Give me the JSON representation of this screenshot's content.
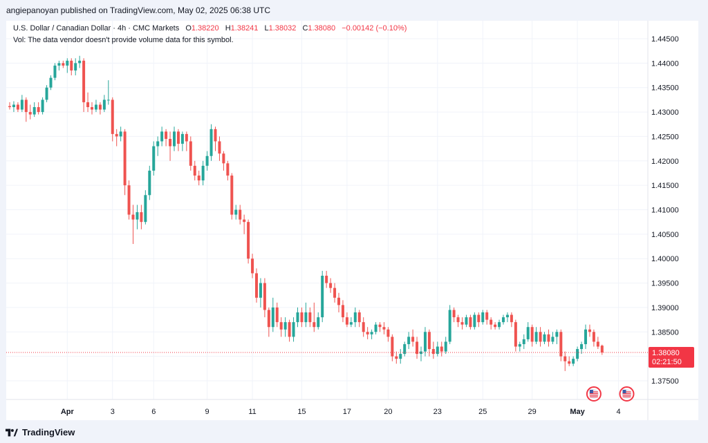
{
  "header": {
    "published": "angiepanoyan published on TradingView.com, May 02, 2025 06:38 UTC"
  },
  "legend": {
    "symbol": "U.S. Dollar / Canadian Dollar · 4h · CMC Markets",
    "o_label": "O",
    "o_value": "1.38220",
    "h_label": "H",
    "h_value": "1.38241",
    "l_label": "L",
    "l_value": "1.38032",
    "c_label": "C",
    "c_value": "1.38080",
    "change": "−0.00142 (−0.10%)",
    "vol_note": "Vol: The data vendor doesn't provide volume data for this symbol."
  },
  "price_label": {
    "price": "1.38080",
    "countdown": "02:21:50"
  },
  "footer": {
    "brand": "TradingView"
  },
  "colors": {
    "up": "#26a69a",
    "down": "#ef5350",
    "grid": "#f0f3fa",
    "text": "#131722",
    "badge": "#f23645"
  },
  "chart_data": {
    "type": "candlestick",
    "symbol": "USDCAD",
    "interval": "4h",
    "ylim": [
      1.3725,
      1.4475
    ],
    "yticks": [
      "1.44500",
      "1.44000",
      "1.43500",
      "1.43000",
      "1.42500",
      "1.42000",
      "1.41500",
      "1.41000",
      "1.40500",
      "1.40000",
      "1.39500",
      "1.39000",
      "1.38500",
      "1.38000",
      "1.37500"
    ],
    "xticks": [
      {
        "label": "Apr",
        "i": 14
      },
      {
        "label": "3",
        "i": 25
      },
      {
        "label": "6",
        "i": 35
      },
      {
        "label": "9",
        "i": 48
      },
      {
        "label": "11",
        "i": 59
      },
      {
        "label": "15",
        "i": 71
      },
      {
        "label": "17",
        "i": 82
      },
      {
        "label": "20",
        "i": 92
      },
      {
        "label": "23",
        "i": 104
      },
      {
        "label": "25",
        "i": 115
      },
      {
        "label": "29",
        "i": 127
      },
      {
        "label": "May",
        "i": 138
      },
      {
        "label": "4",
        "i": 148
      }
    ],
    "grid": true,
    "last_price": 1.3808,
    "event_icons": [
      {
        "i": 142
      },
      {
        "i": 150
      }
    ],
    "candles": [
      [
        1.4312,
        1.432,
        1.4305,
        1.431
      ],
      [
        1.431,
        1.4322,
        1.43,
        1.4315
      ],
      [
        1.4315,
        1.432,
        1.43,
        1.4305
      ],
      [
        1.4305,
        1.4335,
        1.43,
        1.4325
      ],
      [
        1.4325,
        1.433,
        1.428,
        1.43
      ],
      [
        1.43,
        1.4315,
        1.4285,
        1.4295
      ],
      [
        1.4295,
        1.432,
        1.429,
        1.431
      ],
      [
        1.431,
        1.432,
        1.4295,
        1.43
      ],
      [
        1.43,
        1.433,
        1.4295,
        1.4325
      ],
      [
        1.4325,
        1.4355,
        1.432,
        1.435
      ],
      [
        1.435,
        1.4375,
        1.4345,
        1.437
      ],
      [
        1.437,
        1.44,
        1.4365,
        1.4395
      ],
      [
        1.4395,
        1.4405,
        1.4385,
        1.44
      ],
      [
        1.44,
        1.4405,
        1.439,
        1.4395
      ],
      [
        1.4395,
        1.441,
        1.438,
        1.4405
      ],
      [
        1.4405,
        1.441,
        1.4375,
        1.4385
      ],
      [
        1.4385,
        1.441,
        1.4375,
        1.44
      ],
      [
        1.44,
        1.4415,
        1.439,
        1.4405
      ],
      [
        1.4405,
        1.441,
        1.43,
        1.432
      ],
      [
        1.432,
        1.434,
        1.43,
        1.431
      ],
      [
        1.431,
        1.432,
        1.4295,
        1.4305
      ],
      [
        1.4305,
        1.4325,
        1.43,
        1.4315
      ],
      [
        1.4315,
        1.432,
        1.4295,
        1.4305
      ],
      [
        1.4305,
        1.4335,
        1.43,
        1.4325
      ],
      [
        1.4325,
        1.4365,
        1.4315,
        1.4325
      ],
      [
        1.4325,
        1.433,
        1.424,
        1.4255
      ],
      [
        1.4255,
        1.4265,
        1.423,
        1.425
      ],
      [
        1.425,
        1.427,
        1.424,
        1.426
      ],
      [
        1.426,
        1.4265,
        1.413,
        1.415
      ],
      [
        1.415,
        1.416,
        1.408,
        1.409
      ],
      [
        1.409,
        1.411,
        1.403,
        1.408
      ],
      [
        1.408,
        1.411,
        1.406,
        1.4095
      ],
      [
        1.4095,
        1.411,
        1.406,
        1.4075
      ],
      [
        1.4075,
        1.414,
        1.407,
        1.413
      ],
      [
        1.413,
        1.419,
        1.412,
        1.418
      ],
      [
        1.418,
        1.424,
        1.417,
        1.423
      ],
      [
        1.423,
        1.425,
        1.421,
        1.424
      ],
      [
        1.424,
        1.427,
        1.423,
        1.426
      ],
      [
        1.426,
        1.4265,
        1.423,
        1.4245
      ],
      [
        1.4245,
        1.426,
        1.42,
        1.423
      ],
      [
        1.423,
        1.427,
        1.422,
        1.426
      ],
      [
        1.426,
        1.4265,
        1.422,
        1.4235
      ],
      [
        1.4235,
        1.426,
        1.422,
        1.4255
      ],
      [
        1.4255,
        1.426,
        1.422,
        1.424
      ],
      [
        1.424,
        1.425,
        1.418,
        1.419
      ],
      [
        1.419,
        1.42,
        1.416,
        1.417
      ],
      [
        1.417,
        1.418,
        1.415,
        1.416
      ],
      [
        1.416,
        1.42,
        1.415,
        1.419
      ],
      [
        1.419,
        1.422,
        1.418,
        1.421
      ],
      [
        1.421,
        1.4275,
        1.42,
        1.4265
      ],
      [
        1.4265,
        1.427,
        1.422,
        1.424
      ],
      [
        1.424,
        1.425,
        1.42,
        1.4215
      ],
      [
        1.4215,
        1.422,
        1.418,
        1.4195
      ],
      [
        1.4195,
        1.42,
        1.416,
        1.417
      ],
      [
        1.417,
        1.4175,
        1.408,
        1.409
      ],
      [
        1.409,
        1.411,
        1.408,
        1.41
      ],
      [
        1.41,
        1.411,
        1.407,
        1.408
      ],
      [
        1.408,
        1.409,
        1.405,
        1.4075
      ],
      [
        1.4075,
        1.408,
        1.399,
        1.4
      ],
      [
        1.4,
        1.401,
        1.396,
        1.397
      ],
      [
        1.397,
        1.398,
        1.391,
        1.392
      ],
      [
        1.392,
        1.396,
        1.39,
        1.395
      ],
      [
        1.395,
        1.396,
        1.388,
        1.3895
      ],
      [
        1.3895,
        1.39,
        1.384,
        1.386
      ],
      [
        1.386,
        1.392,
        1.385,
        1.39
      ],
      [
        1.39,
        1.391,
        1.386,
        1.387
      ],
      [
        1.387,
        1.388,
        1.384,
        1.3855
      ],
      [
        1.3855,
        1.388,
        1.384,
        1.387
      ],
      [
        1.387,
        1.3875,
        1.383,
        1.384
      ],
      [
        1.384,
        1.388,
        1.383,
        1.387
      ],
      [
        1.387,
        1.39,
        1.386,
        1.389
      ],
      [
        1.389,
        1.39,
        1.386,
        1.387
      ],
      [
        1.387,
        1.391,
        1.386,
        1.389
      ],
      [
        1.389,
        1.39,
        1.386,
        1.387
      ],
      [
        1.387,
        1.391,
        1.385,
        1.386
      ],
      [
        1.386,
        1.389,
        1.3855,
        1.388
      ],
      [
        1.388,
        1.3975,
        1.387,
        1.3965
      ],
      [
        1.3965,
        1.3975,
        1.394,
        1.395
      ],
      [
        1.395,
        1.396,
        1.393,
        1.394
      ],
      [
        1.394,
        1.395,
        1.391,
        1.392
      ],
      [
        1.392,
        1.393,
        1.389,
        1.3905
      ],
      [
        1.3905,
        1.3915,
        1.387,
        1.388
      ],
      [
        1.388,
        1.389,
        1.386,
        1.3865
      ],
      [
        1.3865,
        1.388,
        1.386,
        1.387
      ],
      [
        1.387,
        1.39,
        1.386,
        1.389
      ],
      [
        1.389,
        1.3895,
        1.386,
        1.387
      ],
      [
        1.387,
        1.388,
        1.384,
        1.385
      ],
      [
        1.385,
        1.386,
        1.3835,
        1.3845
      ],
      [
        1.3845,
        1.3855,
        1.3835,
        1.385
      ],
      [
        1.385,
        1.387,
        1.3845,
        1.3865
      ],
      [
        1.3865,
        1.387,
        1.385,
        1.386
      ],
      [
        1.386,
        1.387,
        1.3845,
        1.3855
      ],
      [
        1.3855,
        1.386,
        1.383,
        1.384
      ],
      [
        1.384,
        1.3845,
        1.379,
        1.38
      ],
      [
        1.38,
        1.381,
        1.3785,
        1.3795
      ],
      [
        1.3795,
        1.3815,
        1.3785,
        1.3805
      ],
      [
        1.3805,
        1.383,
        1.38,
        1.3825
      ],
      [
        1.3825,
        1.385,
        1.3815,
        1.384
      ],
      [
        1.384,
        1.3855,
        1.382,
        1.383
      ],
      [
        1.383,
        1.384,
        1.3795,
        1.3805
      ],
      [
        1.3805,
        1.382,
        1.379,
        1.381
      ],
      [
        1.381,
        1.386,
        1.38,
        1.385
      ],
      [
        1.385,
        1.3855,
        1.38,
        1.3815
      ],
      [
        1.3815,
        1.383,
        1.3795,
        1.3805
      ],
      [
        1.3805,
        1.383,
        1.38,
        1.382
      ],
      [
        1.382,
        1.383,
        1.38,
        1.381
      ],
      [
        1.381,
        1.384,
        1.3805,
        1.383
      ],
      [
        1.383,
        1.3905,
        1.3825,
        1.3895
      ],
      [
        1.3895,
        1.39,
        1.387,
        1.388
      ],
      [
        1.388,
        1.3885,
        1.386,
        1.387
      ],
      [
        1.387,
        1.388,
        1.3855,
        1.3865
      ],
      [
        1.3865,
        1.3885,
        1.386,
        1.388
      ],
      [
        1.388,
        1.3885,
        1.3855,
        1.386
      ],
      [
        1.386,
        1.389,
        1.3855,
        1.3885
      ],
      [
        1.3885,
        1.389,
        1.386,
        1.387
      ],
      [
        1.387,
        1.3895,
        1.3865,
        1.389
      ],
      [
        1.389,
        1.3895,
        1.3865,
        1.3875
      ],
      [
        1.3875,
        1.388,
        1.3855,
        1.3865
      ],
      [
        1.3865,
        1.387,
        1.3855,
        1.386
      ],
      [
        1.386,
        1.3875,
        1.3855,
        1.387
      ],
      [
        1.387,
        1.3885,
        1.3865,
        1.388
      ],
      [
        1.388,
        1.389,
        1.387,
        1.3885
      ],
      [
        1.3885,
        1.389,
        1.386,
        1.387
      ],
      [
        1.387,
        1.3875,
        1.381,
        1.382
      ],
      [
        1.382,
        1.383,
        1.381,
        1.3825
      ],
      [
        1.3825,
        1.3845,
        1.3815,
        1.3835
      ],
      [
        1.3835,
        1.387,
        1.383,
        1.386
      ],
      [
        1.386,
        1.3865,
        1.382,
        1.383
      ],
      [
        1.383,
        1.386,
        1.3825,
        1.385
      ],
      [
        1.385,
        1.386,
        1.382,
        1.383
      ],
      [
        1.383,
        1.385,
        1.3825,
        1.3845
      ],
      [
        1.3845,
        1.3855,
        1.382,
        1.383
      ],
      [
        1.383,
        1.385,
        1.3825,
        1.384
      ],
      [
        1.384,
        1.3855,
        1.3825,
        1.385
      ],
      [
        1.385,
        1.3855,
        1.379,
        1.38
      ],
      [
        1.38,
        1.381,
        1.377,
        1.379
      ],
      [
        1.379,
        1.38,
        1.378,
        1.3785
      ],
      [
        1.3785,
        1.38,
        1.378,
        1.3795
      ],
      [
        1.3795,
        1.382,
        1.379,
        1.3815
      ],
      [
        1.3815,
        1.383,
        1.3805,
        1.3825
      ],
      [
        1.3825,
        1.3865,
        1.3815,
        1.3855
      ],
      [
        1.3855,
        1.3865,
        1.384,
        1.385
      ],
      [
        1.385,
        1.3855,
        1.382,
        1.383
      ],
      [
        1.383,
        1.384,
        1.3815,
        1.382
      ],
      [
        1.3822,
        1.3824,
        1.3803,
        1.3808
      ]
    ]
  }
}
